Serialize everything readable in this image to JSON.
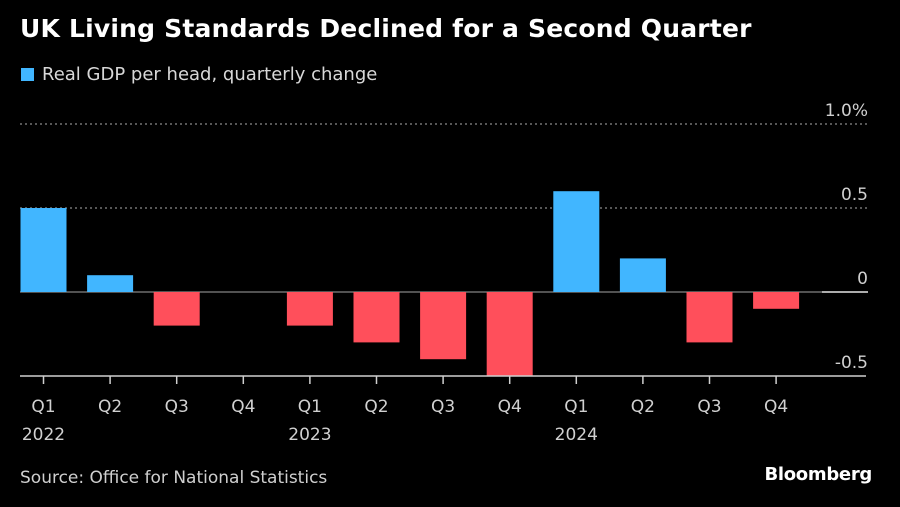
{
  "header": {
    "title": "UK Living Standards Declined for a Second Quarter"
  },
  "footer": {
    "source": "Source: Office for National Statistics",
    "brand": "Bloomberg"
  },
  "colors": {
    "positive": "#41b6ff",
    "negative": "#ff4f5b",
    "background": "#000000",
    "grid": "#8a8a8a",
    "axis": "#cfcfcf"
  },
  "chart_data": {
    "type": "bar",
    "title": "UK Living Standards Declined for a Second Quarter",
    "legend": [
      {
        "name": "Real GDP per head, quarterly change",
        "color": "#41b6ff"
      }
    ],
    "legend_position": "top-left",
    "categories": [
      "Q1 2022",
      "Q2 2022",
      "Q3 2022",
      "Q4 2022",
      "Q1 2023",
      "Q2 2023",
      "Q3 2023",
      "Q4 2023",
      "Q1 2024",
      "Q2 2024",
      "Q3 2024",
      "Q4 2024"
    ],
    "x_tick_quarters": [
      "Q1",
      "Q2",
      "Q3",
      "Q4",
      "Q1",
      "Q2",
      "Q3",
      "Q4",
      "Q1",
      "Q2",
      "Q3",
      "Q4"
    ],
    "x_tick_years": {
      "0": "2022",
      "4": "2023",
      "8": "2024"
    },
    "series": [
      {
        "name": "Real GDP per head, quarterly change",
        "values": [
          0.5,
          0.1,
          -0.2,
          0.0,
          -0.2,
          -0.3,
          -0.4,
          -0.5,
          0.6,
          0.2,
          -0.3,
          -0.1
        ]
      }
    ],
    "xlabel": "",
    "ylabel": "",
    "ylim": [
      -0.5,
      1.0
    ],
    "y_ticks": [
      1.0,
      0.5,
      0,
      -0.5
    ],
    "y_tick_labels": [
      "1.0%",
      "0.5",
      "0",
      "-0.5"
    ],
    "y_axis_side": "right",
    "grid": true
  }
}
